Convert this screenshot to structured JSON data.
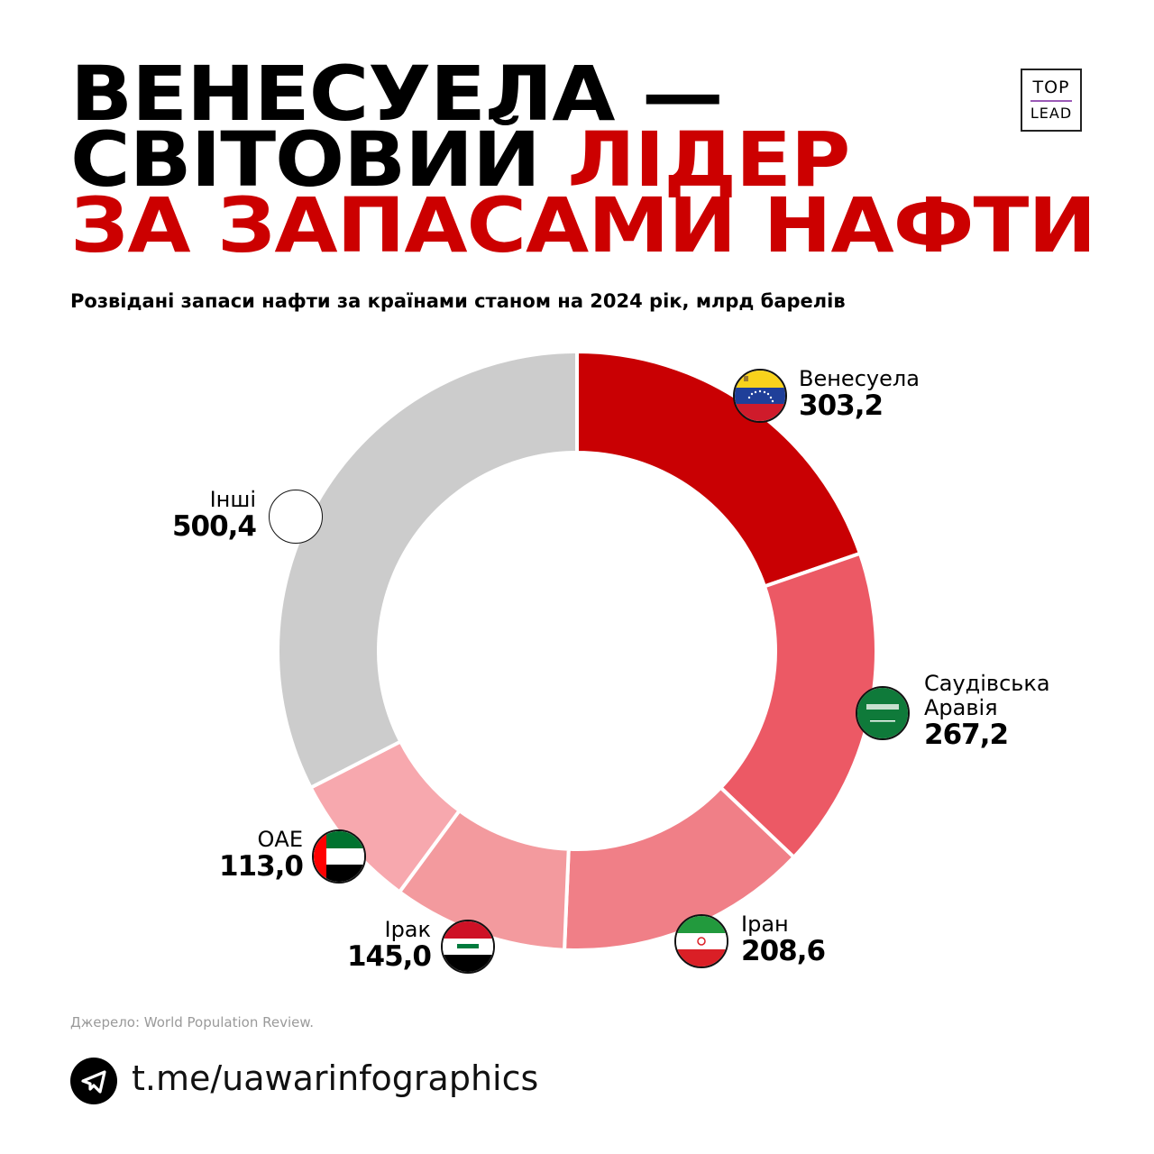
{
  "header": {
    "title_line1": "ВЕНЕСУЕЛА —",
    "title_line2_black": "СВІТОВИЙ",
    "title_line2_red": "ЛІДЕР",
    "title_line3": "ЗА ЗАПАСАМИ НАФТИ",
    "subtitle": "Розвідані запаси нафти за країнами станом на 2024 рік, млрд барелів",
    "logo_top": "TOP",
    "logo_bottom": "LEAD"
  },
  "labels": {
    "venezuela": {
      "name": "Венесуела",
      "value": "303,2"
    },
    "saudi": {
      "name1": "Саудівська",
      "name2": "Аравія",
      "value": "267,2"
    },
    "iran": {
      "name": "Іран",
      "value": "208,6"
    },
    "iraq": {
      "name": "Ірак",
      "value": "145,0"
    },
    "uae": {
      "name": "ОАЕ",
      "value": "113,0"
    },
    "others": {
      "name": "Інші",
      "value": "500,4"
    }
  },
  "footer": {
    "source": "Джерело: World Population Review.",
    "telegram_link": "t.me/uawarinfographics",
    "telegram_icon": "telegram-icon"
  },
  "colors": {
    "accent_red": "#cc0000",
    "venezuela": "#c90003",
    "saudi": "#ec5965",
    "iran": "#f07f87",
    "iraq": "#f39a9e",
    "uae": "#f7a8ae",
    "others": "#cccccc"
  },
  "chart_data": {
    "type": "pie",
    "subtype": "donut",
    "title": "Розвідані запаси нафти за країнами станом на 2024 рік, млрд барелів",
    "categories": [
      "Венесуела",
      "Саудівська Аравія",
      "Іран",
      "Ірак",
      "ОАЕ",
      "Інші"
    ],
    "values": [
      303.2,
      267.2,
      208.6,
      145.0,
      113.0,
      500.4
    ],
    "colors": [
      "#c90003",
      "#ec5965",
      "#f07f87",
      "#f39a9e",
      "#f7a8ae",
      "#cccccc"
    ],
    "unit": "млрд барелів",
    "start_angle": "12 o'clock, clockwise",
    "legend": "labels with flags next to each segment"
  }
}
